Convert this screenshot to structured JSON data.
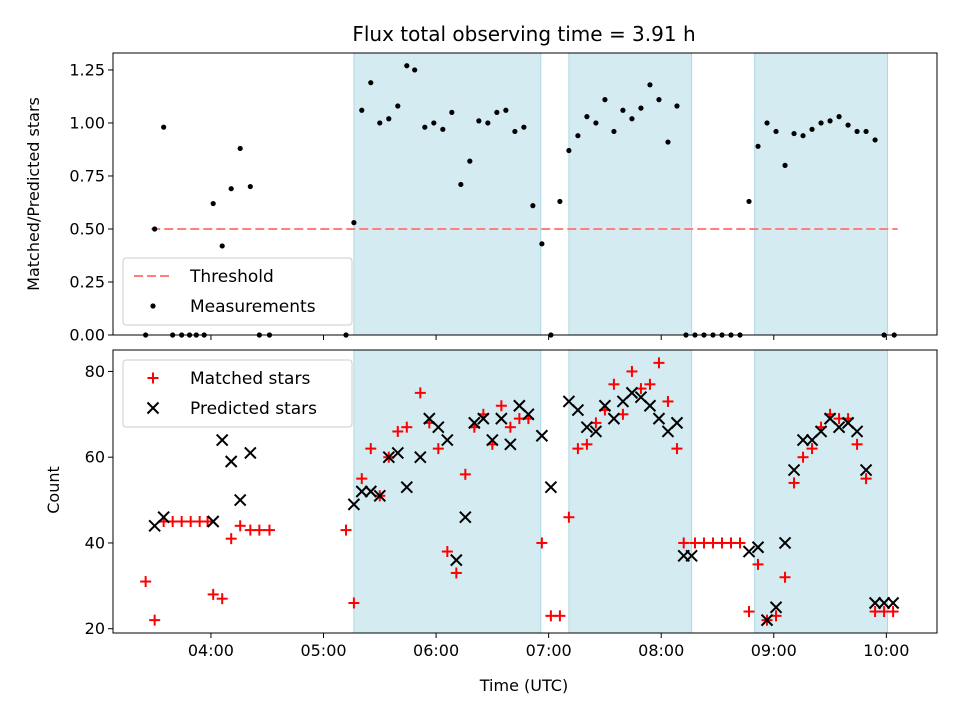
{
  "chart_data": {
    "type": "scatter",
    "title": "Flux total observing time = 3.91 h",
    "xlabel": "Time (UTC)",
    "x_unit": "hours",
    "x_ticks": [
      "04:00",
      "05:00",
      "06:00",
      "07:00",
      "08:00",
      "09:00",
      "10:00"
    ],
    "x_tick_values": [
      4,
      5,
      6,
      7,
      8,
      9,
      10
    ],
    "xlim": [
      3.13,
      10.45
    ],
    "shaded_intervals": [
      [
        5.27,
        6.93
      ],
      [
        7.18,
        8.27
      ],
      [
        8.83,
        10.01
      ]
    ],
    "colors": {
      "shade": "#add8e6",
      "threshold": "#ff7f7f",
      "matched": "#ff0000",
      "predicted": "#000000",
      "measurement": "#000000"
    },
    "top_panel": {
      "ylabel": "Matched/Predicted stars",
      "ylim": [
        0,
        1.33
      ],
      "y_ticks": [
        "0.00",
        "0.25",
        "0.50",
        "0.75",
        "1.00",
        "1.25"
      ],
      "y_tick_values": [
        0,
        0.25,
        0.5,
        0.75,
        1.0,
        1.25
      ],
      "legend": [
        "Threshold",
        "Measurements"
      ],
      "legend_position": "lower-left",
      "threshold": {
        "name": "Threshold",
        "value": 0.5,
        "x": [
          3.47,
          10.1
        ]
      },
      "measurements": {
        "name": "Measurements",
        "x": [
          3.42,
          3.5,
          3.58,
          3.66,
          3.74,
          3.81,
          3.87,
          3.94,
          4.02,
          4.1,
          4.18,
          4.26,
          4.35,
          4.43,
          4.52,
          5.2,
          5.27,
          5.34,
          5.42,
          5.5,
          5.58,
          5.66,
          5.74,
          5.81,
          5.9,
          5.98,
          6.06,
          6.14,
          6.22,
          6.3,
          6.38,
          6.46,
          6.54,
          6.62,
          6.7,
          6.78,
          6.86,
          6.94,
          7.02,
          7.1,
          7.18,
          7.26,
          7.34,
          7.42,
          7.5,
          7.58,
          7.66,
          7.74,
          7.82,
          7.9,
          7.98,
          8.06,
          8.14,
          8.22,
          8.3,
          8.38,
          8.46,
          8.54,
          8.62,
          8.7,
          8.78,
          8.86,
          8.94,
          9.02,
          9.1,
          9.18,
          9.26,
          9.34,
          9.42,
          9.5,
          9.58,
          9.66,
          9.74,
          9.82,
          9.9,
          9.98,
          10.07
        ],
        "y": [
          0,
          0.5,
          0.98,
          0,
          0,
          0,
          0,
          0,
          0.62,
          0.42,
          0.69,
          0.88,
          0.7,
          0,
          0,
          0,
          0.53,
          1.06,
          1.19,
          1.0,
          1.02,
          1.08,
          1.27,
          1.25,
          0.98,
          1.0,
          0.97,
          1.05,
          0.71,
          0.82,
          1.01,
          1.0,
          1.05,
          1.06,
          0.96,
          0.98,
          0.61,
          0.43,
          0,
          0.63,
          0.87,
          0.94,
          1.03,
          1.0,
          1.11,
          0.96,
          1.06,
          1.02,
          1.07,
          1.18,
          1.11,
          0.91,
          1.08,
          0,
          0,
          0,
          0,
          0,
          0,
          0,
          0.63,
          0.89,
          1.0,
          0.96,
          0.8,
          0.95,
          0.94,
          0.97,
          1.0,
          1.01,
          1.03,
          0.99,
          0.96,
          0.96,
          0.92,
          0,
          0
        ]
      }
    },
    "bottom_panel": {
      "ylabel": "Count",
      "ylim": [
        19,
        85
      ],
      "y_ticks": [
        "20",
        "40",
        "60",
        "80"
      ],
      "y_tick_values": [
        20,
        40,
        60,
        80
      ],
      "legend": [
        "Matched stars",
        "Predicted stars"
      ],
      "legend_position": "upper-left",
      "series": [
        {
          "name": "Matched stars",
          "marker": "plus",
          "x": [
            3.42,
            3.5,
            3.58,
            3.66,
            3.74,
            3.82,
            3.9,
            3.97,
            4.02,
            4.1,
            4.18,
            4.26,
            4.35,
            4.43,
            4.52,
            5.2,
            5.27,
            5.34,
            5.42,
            5.5,
            5.58,
            5.66,
            5.74,
            5.86,
            5.94,
            6.02,
            6.1,
            6.18,
            6.26,
            6.34,
            6.42,
            6.5,
            6.58,
            6.66,
            6.74,
            6.82,
            6.94,
            7.02,
            7.1,
            7.18,
            7.26,
            7.34,
            7.42,
            7.5,
            7.58,
            7.66,
            7.74,
            7.82,
            7.9,
            7.98,
            8.06,
            8.14,
            8.2,
            8.3,
            8.38,
            8.46,
            8.54,
            8.62,
            8.7,
            8.78,
            8.86,
            8.94,
            9.02,
            9.1,
            9.18,
            9.26,
            9.34,
            9.42,
            9.5,
            9.58,
            9.66,
            9.74,
            9.82,
            9.9,
            9.98,
            10.06
          ],
          "y": [
            31,
            22,
            45,
            45,
            45,
            45,
            45,
            45,
            28,
            27,
            41,
            44,
            43,
            43,
            43,
            43,
            26,
            55,
            62,
            51,
            60,
            66,
            67,
            75,
            68,
            62,
            38,
            33,
            56,
            67,
            70,
            63,
            72,
            67,
            69,
            69,
            40,
            23,
            23,
            46,
            62,
            63,
            68,
            71,
            77,
            70,
            80,
            76,
            77,
            82,
            73,
            62,
            40,
            40,
            40,
            40,
            40,
            40,
            40,
            24,
            35,
            22,
            23,
            32,
            54,
            60,
            62,
            67,
            70,
            69,
            69,
            63,
            55,
            24,
            24,
            24
          ]
        },
        {
          "name": "Predicted stars",
          "marker": "cross",
          "x": [
            3.5,
            3.58,
            4.02,
            4.1,
            4.18,
            4.26,
            4.35,
            5.27,
            5.34,
            5.42,
            5.5,
            5.58,
            5.66,
            5.74,
            5.86,
            5.94,
            6.02,
            6.1,
            6.18,
            6.26,
            6.34,
            6.42,
            6.5,
            6.58,
            6.66,
            6.74,
            6.82,
            6.94,
            7.02,
            7.18,
            7.26,
            7.34,
            7.42,
            7.5,
            7.58,
            7.66,
            7.74,
            7.82,
            7.9,
            7.98,
            8.06,
            8.14,
            8.2,
            8.27,
            8.78,
            8.86,
            8.94,
            9.02,
            9.1,
            9.18,
            9.26,
            9.34,
            9.42,
            9.5,
            9.58,
            9.66,
            9.74,
            9.82,
            9.9,
            9.98,
            10.06
          ],
          "y": [
            44,
            46,
            45,
            64,
            59,
            50,
            61,
            49,
            52,
            52,
            51,
            60,
            61,
            53,
            60,
            69,
            67,
            64,
            36,
            46,
            68,
            69,
            64,
            69,
            63,
            72,
            70,
            65,
            53,
            73,
            71,
            67,
            66,
            72,
            69,
            73,
            75,
            74,
            72,
            69,
            66,
            68,
            37,
            37,
            38,
            39,
            22,
            25,
            40,
            57,
            64,
            64,
            66,
            69,
            67,
            68,
            66,
            57,
            26,
            26,
            26
          ]
        }
      ]
    }
  }
}
